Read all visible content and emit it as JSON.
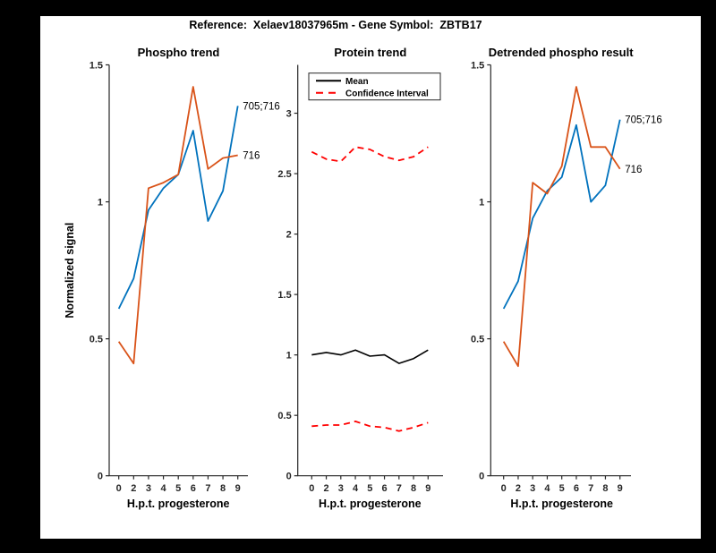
{
  "figure_title": "Reference:  Xelaev18037965m - Gene Symbol:  ZBTB17",
  "colors": {
    "background": "#000000",
    "figure": "#FFFFFF",
    "axis": "#262626",
    "blue": "#0072BD",
    "orange": "#D95319",
    "ci_red": "#FF0000",
    "mean_black": "#000000"
  },
  "chart_data": [
    {
      "type": "line",
      "title": "Phospho trend",
      "xlabel": "H.p.t. progesterone",
      "ylabel": "Normalized signal",
      "x_tick_labels": [
        "0",
        "2",
        "3",
        "4",
        "5",
        "6",
        "7",
        "8",
        "9"
      ],
      "y_ticks": [
        0,
        0.5,
        1,
        1.5
      ],
      "ylim": [
        0,
        1.5
      ],
      "grid": false,
      "series": [
        {
          "name": "705;716",
          "color": "#0072BD",
          "style": "solid",
          "values": [
            0.61,
            0.72,
            0.97,
            1.05,
            1.1,
            1.26,
            0.93,
            1.04,
            1.35
          ],
          "end_label": "705;716"
        },
        {
          "name": "716",
          "color": "#D95319",
          "style": "solid",
          "values": [
            0.49,
            0.41,
            1.05,
            1.07,
            1.1,
            1.42,
            1.12,
            1.16,
            1.17
          ],
          "end_label": "716"
        }
      ]
    },
    {
      "type": "line",
      "title": "Protein trend",
      "xlabel": "H.p.t. progesterone",
      "ylabel": "",
      "x_tick_labels": [
        "0",
        "2",
        "3",
        "4",
        "5",
        "6",
        "7",
        "8",
        "9"
      ],
      "y_ticks": [
        0,
        0.5,
        1,
        1.5,
        2,
        2.5,
        3
      ],
      "ylim": [
        0,
        3.4
      ],
      "grid": false,
      "legend": {
        "position": "top-left",
        "entries": [
          {
            "label": "Mean",
            "series": 0
          },
          {
            "label": "Confidence Interval",
            "series": 1
          }
        ]
      },
      "series": [
        {
          "name": "Mean",
          "color": "#000000",
          "style": "solid",
          "values": [
            1.0,
            1.02,
            1.0,
            1.04,
            0.99,
            1.0,
            0.93,
            0.97,
            1.04
          ]
        },
        {
          "name": "Confidence Interval upper",
          "color": "#FF0000",
          "style": "dashed",
          "values": [
            2.68,
            2.62,
            2.6,
            2.72,
            2.7,
            2.64,
            2.61,
            2.64,
            2.72
          ]
        },
        {
          "name": "Confidence Interval lower",
          "color": "#FF0000",
          "style": "dashed",
          "values": [
            0.41,
            0.42,
            0.42,
            0.45,
            0.41,
            0.4,
            0.37,
            0.4,
            0.44
          ]
        }
      ]
    },
    {
      "type": "line",
      "title": "Detrended phospho result",
      "xlabel": "H.p.t. progesterone",
      "ylabel": "",
      "x_tick_labels": [
        "0",
        "2",
        "3",
        "4",
        "5",
        "6",
        "7",
        "8",
        "9"
      ],
      "y_ticks": [
        0,
        0.5,
        1,
        1.5
      ],
      "ylim": [
        0,
        1.5
      ],
      "grid": false,
      "series": [
        {
          "name": "705;716",
          "color": "#0072BD",
          "style": "solid",
          "values": [
            0.61,
            0.71,
            0.94,
            1.04,
            1.09,
            1.28,
            1.0,
            1.06,
            1.3
          ],
          "end_label": "705;716"
        },
        {
          "name": "716",
          "color": "#D95319",
          "style": "solid",
          "values": [
            0.49,
            0.4,
            1.07,
            1.03,
            1.13,
            1.42,
            1.2,
            1.2,
            1.12
          ],
          "end_label": "716"
        }
      ]
    }
  ]
}
